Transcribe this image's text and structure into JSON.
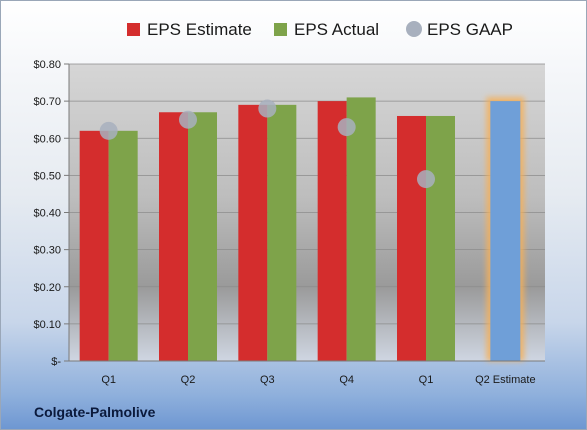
{
  "company": "Colgate-Palmolive",
  "chart_data": {
    "type": "bar",
    "categories": [
      "Q1",
      "Q2",
      "Q3",
      "Q4",
      "Q1",
      "Q2 Estimate"
    ],
    "series": [
      {
        "name": "EPS Estimate",
        "color": "#d42d2d",
        "values": [
          0.62,
          0.67,
          0.69,
          0.7,
          0.66,
          null
        ]
      },
      {
        "name": "EPS Actual",
        "color": "#7ea34a",
        "values": [
          0.62,
          0.67,
          0.69,
          0.71,
          0.66,
          null
        ]
      },
      {
        "name": "EPS GAAP",
        "color": "#a8b0be",
        "type": "scatter",
        "values": [
          0.62,
          0.65,
          0.68,
          0.63,
          0.49,
          null
        ]
      }
    ],
    "projection": {
      "category": "Q2 Estimate",
      "value": 0.7,
      "color": "#6f9fd8",
      "glow": "#f5b05a"
    },
    "ylim": [
      0,
      0.8
    ],
    "yticks": [
      0,
      0.1,
      0.2,
      0.3,
      0.4,
      0.5,
      0.6,
      0.7,
      0.8
    ],
    "ytick_labels": [
      "$-",
      "$0.10",
      "$0.20",
      "$0.30",
      "$0.40",
      "$0.50",
      "$0.60",
      "$0.70",
      "$0.80"
    ],
    "legend_position": "top",
    "grid": true
  }
}
